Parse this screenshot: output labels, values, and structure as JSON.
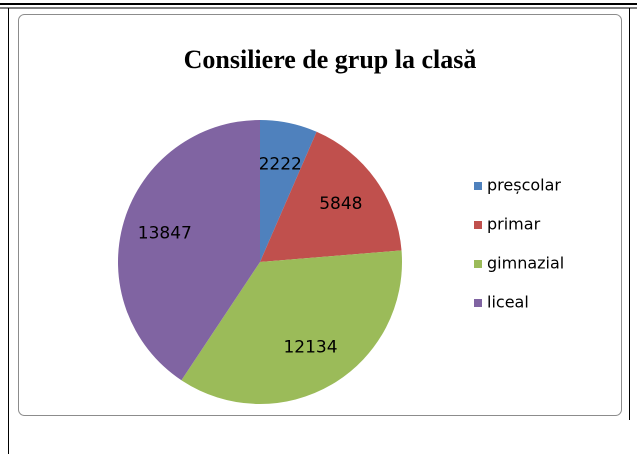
{
  "chart_data": {
    "type": "pie",
    "title": "Consiliere de grup la clasă",
    "categories": [
      "preșcolar",
      "primar",
      "gimnazial",
      "liceal"
    ],
    "values": [
      2222,
      5848,
      12134,
      13847
    ],
    "colors": [
      "#4f81bd",
      "#c0504d",
      "#9bbb59",
      "#8064a2"
    ],
    "legend": "right"
  }
}
